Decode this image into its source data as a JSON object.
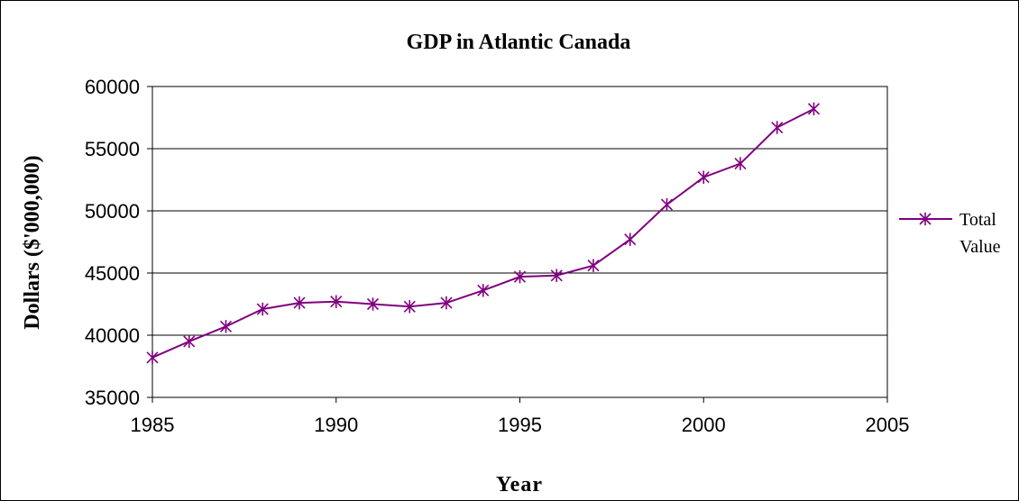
{
  "chart_data": {
    "type": "line",
    "title": "GDP in Atlantic Canada",
    "xlabel": "Year",
    "ylabel": "Dollars ($'000,000)",
    "xlim": [
      1985,
      2005
    ],
    "ylim": [
      35000,
      60000
    ],
    "xticks": [
      1985,
      1990,
      1995,
      2000,
      2005
    ],
    "yticks": [
      35000,
      40000,
      45000,
      50000,
      55000,
      60000
    ],
    "grid": "horizontal",
    "legend": "right",
    "line_color": "#800080",
    "marker": "asterisk",
    "series": [
      {
        "name": "Total Value",
        "x": [
          1985,
          1986,
          1987,
          1988,
          1989,
          1990,
          1991,
          1992,
          1993,
          1994,
          1995,
          1996,
          1997,
          1998,
          1999,
          2000,
          2001,
          2002,
          2003
        ],
        "y": [
          38200,
          39500,
          40700,
          42100,
          42600,
          42700,
          42500,
          42300,
          42600,
          43600,
          44700,
          44800,
          45600,
          47700,
          50500,
          52700,
          53800,
          56700,
          58200
        ]
      }
    ]
  },
  "legend": {
    "line1": "Total",
    "line2": "Value"
  }
}
